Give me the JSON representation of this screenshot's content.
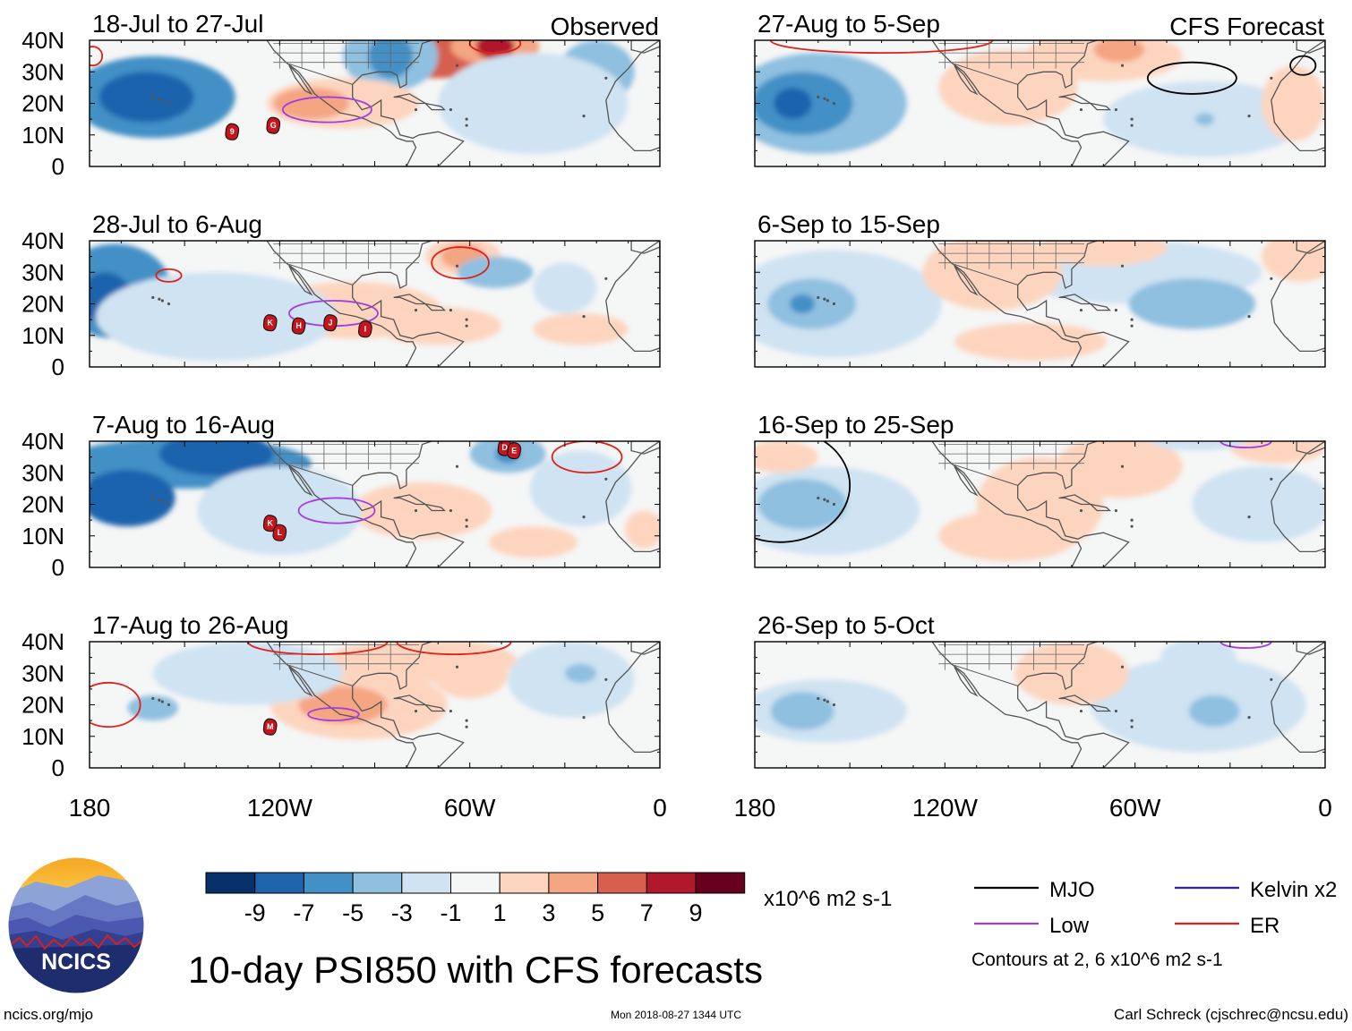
{
  "chart_data": {
    "type": "heatmap",
    "title": "10-day PSI850 with CFS forecasts",
    "variable": "PSI850",
    "units": "x10^6 m2 s-1",
    "colorbar": {
      "ticks": [
        "-9",
        "-7",
        "-5",
        "-3",
        "-1",
        "1",
        "3",
        "5",
        "7",
        "9"
      ],
      "colors": [
        "#08306b",
        "#1f63ad",
        "#4290c6",
        "#8fc0e0",
        "#cfe3f2",
        "#f5f6f6",
        "#fdd5bf",
        "#f4a582",
        "#d6604d",
        "#b2182b",
        "#67001f"
      ]
    },
    "lat_ticks": [
      "40N",
      "30N",
      "20N",
      "10N",
      "0"
    ],
    "lon_ticks": [
      "180",
      "120W",
      "60W",
      "0"
    ],
    "columns": [
      {
        "label": "Observed",
        "panels": [
          {
            "period": "18-Jul to 27-Jul",
            "storms": [
              {
                "id": "9",
                "lon": -135,
                "lat": 11
              },
              {
                "id": "G",
                "lon": -122,
                "lat": 13
              }
            ]
          },
          {
            "period": "28-Jul to 6-Aug",
            "storms": [
              {
                "id": "K",
                "lon": -123,
                "lat": 14
              },
              {
                "id": "H",
                "lon": -114,
                "lat": 13
              },
              {
                "id": "J",
                "lon": -104,
                "lat": 14
              },
              {
                "id": "I",
                "lon": -93,
                "lat": 12
              }
            ]
          },
          {
            "period": "7-Aug to 16-Aug",
            "storms": [
              {
                "id": "D",
                "lon": -49,
                "lat": 38
              },
              {
                "id": "E",
                "lon": -46,
                "lat": 37
              },
              {
                "id": "K",
                "lon": -123,
                "lat": 14
              },
              {
                "id": "L",
                "lon": -120,
                "lat": 11
              }
            ]
          },
          {
            "period": "17-Aug to 26-Aug",
            "storms": [
              {
                "id": "M",
                "lon": -123,
                "lat": 13
              }
            ]
          }
        ]
      },
      {
        "label": "CFS Forecast",
        "panels": [
          {
            "period": "27-Aug to 5-Sep",
            "storms": []
          },
          {
            "period": "6-Sep to 15-Sep",
            "storms": []
          },
          {
            "period": "16-Sep to 25-Sep",
            "storms": []
          },
          {
            "period": "26-Sep to 5-Oct",
            "storms": []
          }
        ]
      }
    ],
    "legend": [
      {
        "label": "MJO",
        "color": "#000000"
      },
      {
        "label": "Kelvin x2",
        "color": "#1f1fd8"
      },
      {
        "label": "Low",
        "color": "#a23ee0"
      },
      {
        "label": "ER",
        "color": "#e0201a"
      }
    ],
    "contour_note": "Contours at 2, 6 x10^6 m2 s-1"
  },
  "branding": {
    "logo_text": "NCICS",
    "site": "ncics.org/mjo",
    "timestamp": "Mon 2018-08-27 1344 UTC",
    "author": "Carl Schreck (cjschrec@ncsu.edu)"
  }
}
